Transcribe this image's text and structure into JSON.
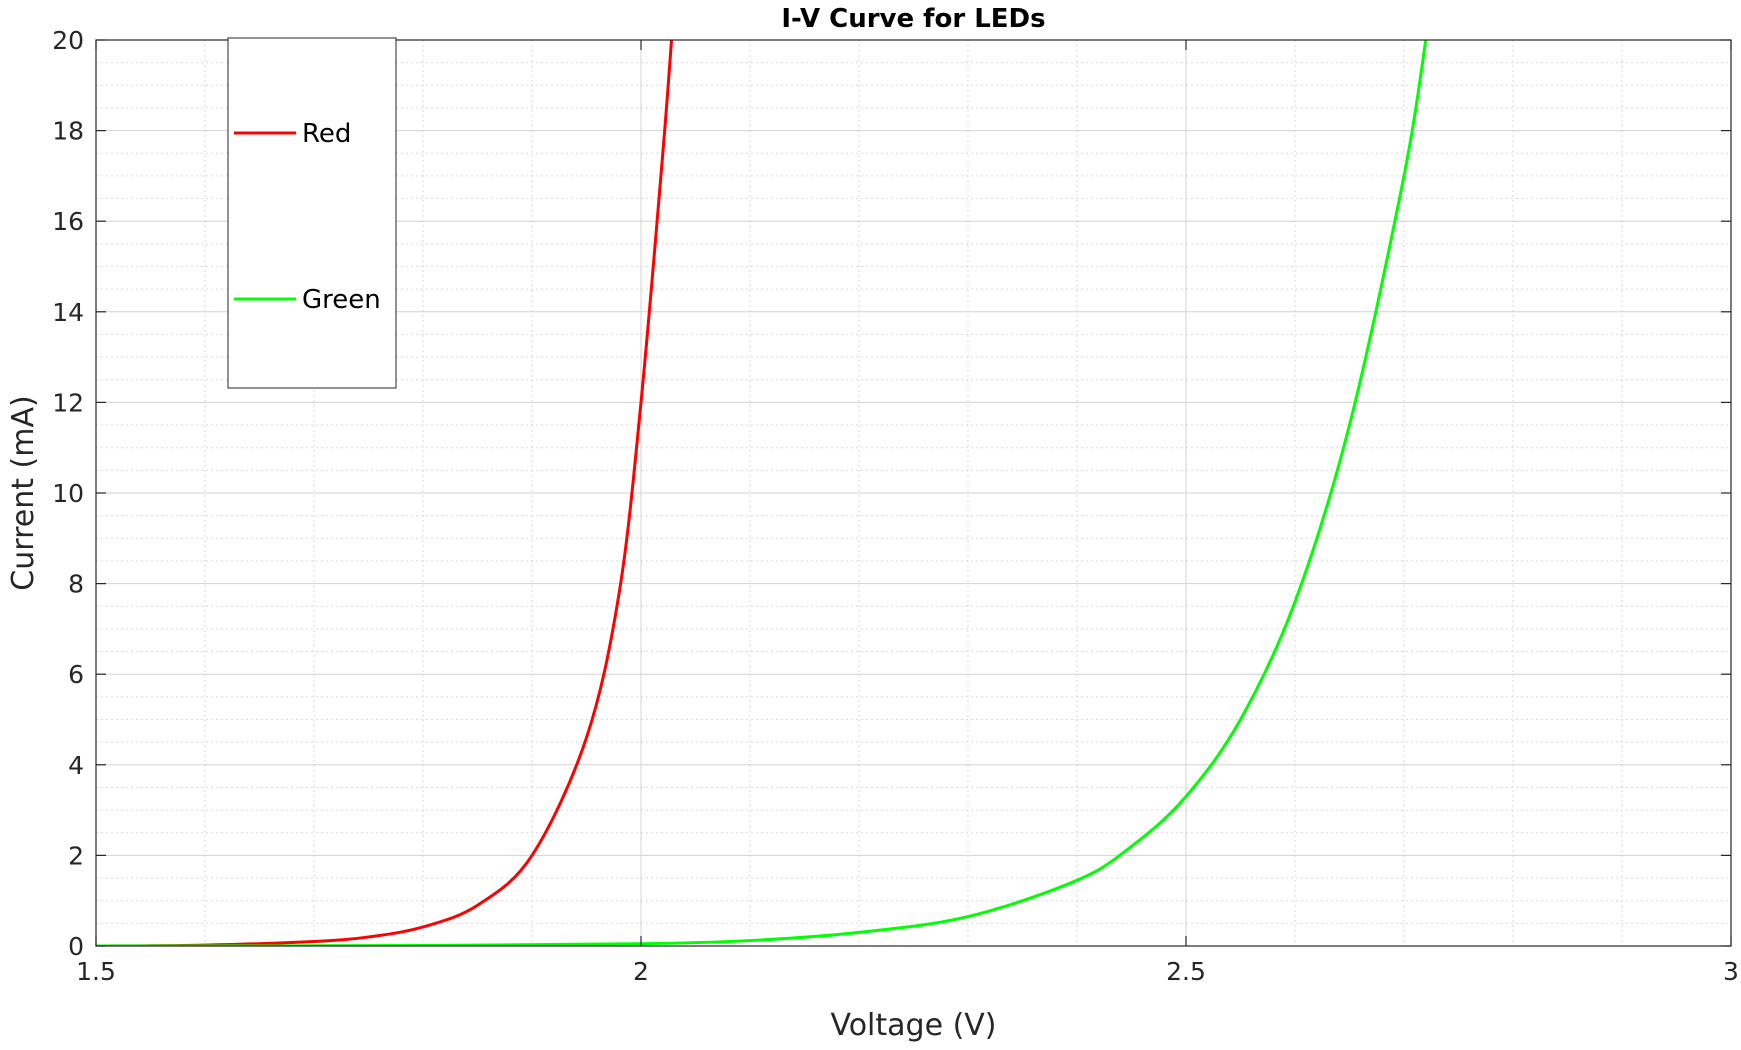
{
  "chart_data": {
    "type": "line",
    "title": "I-V Curve for LEDs",
    "xlabel": "Voltage (V)",
    "ylabel": "Current (mA)",
    "xlim": [
      1.5,
      3
    ],
    "ylim": [
      0,
      20
    ],
    "xticks": [
      1.5,
      2,
      2.5,
      3
    ],
    "xtick_labels": [
      "1.5",
      "2",
      "2.5",
      "3"
    ],
    "yticks": [
      0,
      2,
      4,
      6,
      8,
      10,
      12,
      14,
      16,
      18,
      20
    ],
    "ytick_labels": [
      "0",
      "2",
      "4",
      "6",
      "8",
      "10",
      "12",
      "14",
      "16",
      "18",
      "20"
    ],
    "grid": true,
    "minor_grid": true,
    "legend_position": "top-left",
    "series": [
      {
        "name": "Red",
        "color": "#ff0000",
        "x": [
          1.5,
          1.6,
          1.7,
          1.75,
          1.8,
          1.85,
          1.9,
          1.95,
          1.98,
          2.0,
          2.02,
          2.028
        ],
        "y": [
          0.0,
          0.02,
          0.1,
          0.2,
          0.42,
          0.9,
          2.0,
          4.6,
          7.8,
          12.0,
          17.5,
          20.0
        ]
      },
      {
        "name": "Green",
        "color": "#00ff00",
        "x": [
          1.5,
          1.8,
          2.0,
          2.1,
          2.2,
          2.3,
          2.4,
          2.45,
          2.5,
          2.55,
          2.6,
          2.65,
          2.7,
          2.72
        ],
        "y": [
          0.0,
          0.01,
          0.05,
          0.12,
          0.3,
          0.65,
          1.45,
          2.2,
          3.3,
          5.0,
          7.6,
          11.5,
          17.0,
          20.0
        ]
      }
    ]
  }
}
